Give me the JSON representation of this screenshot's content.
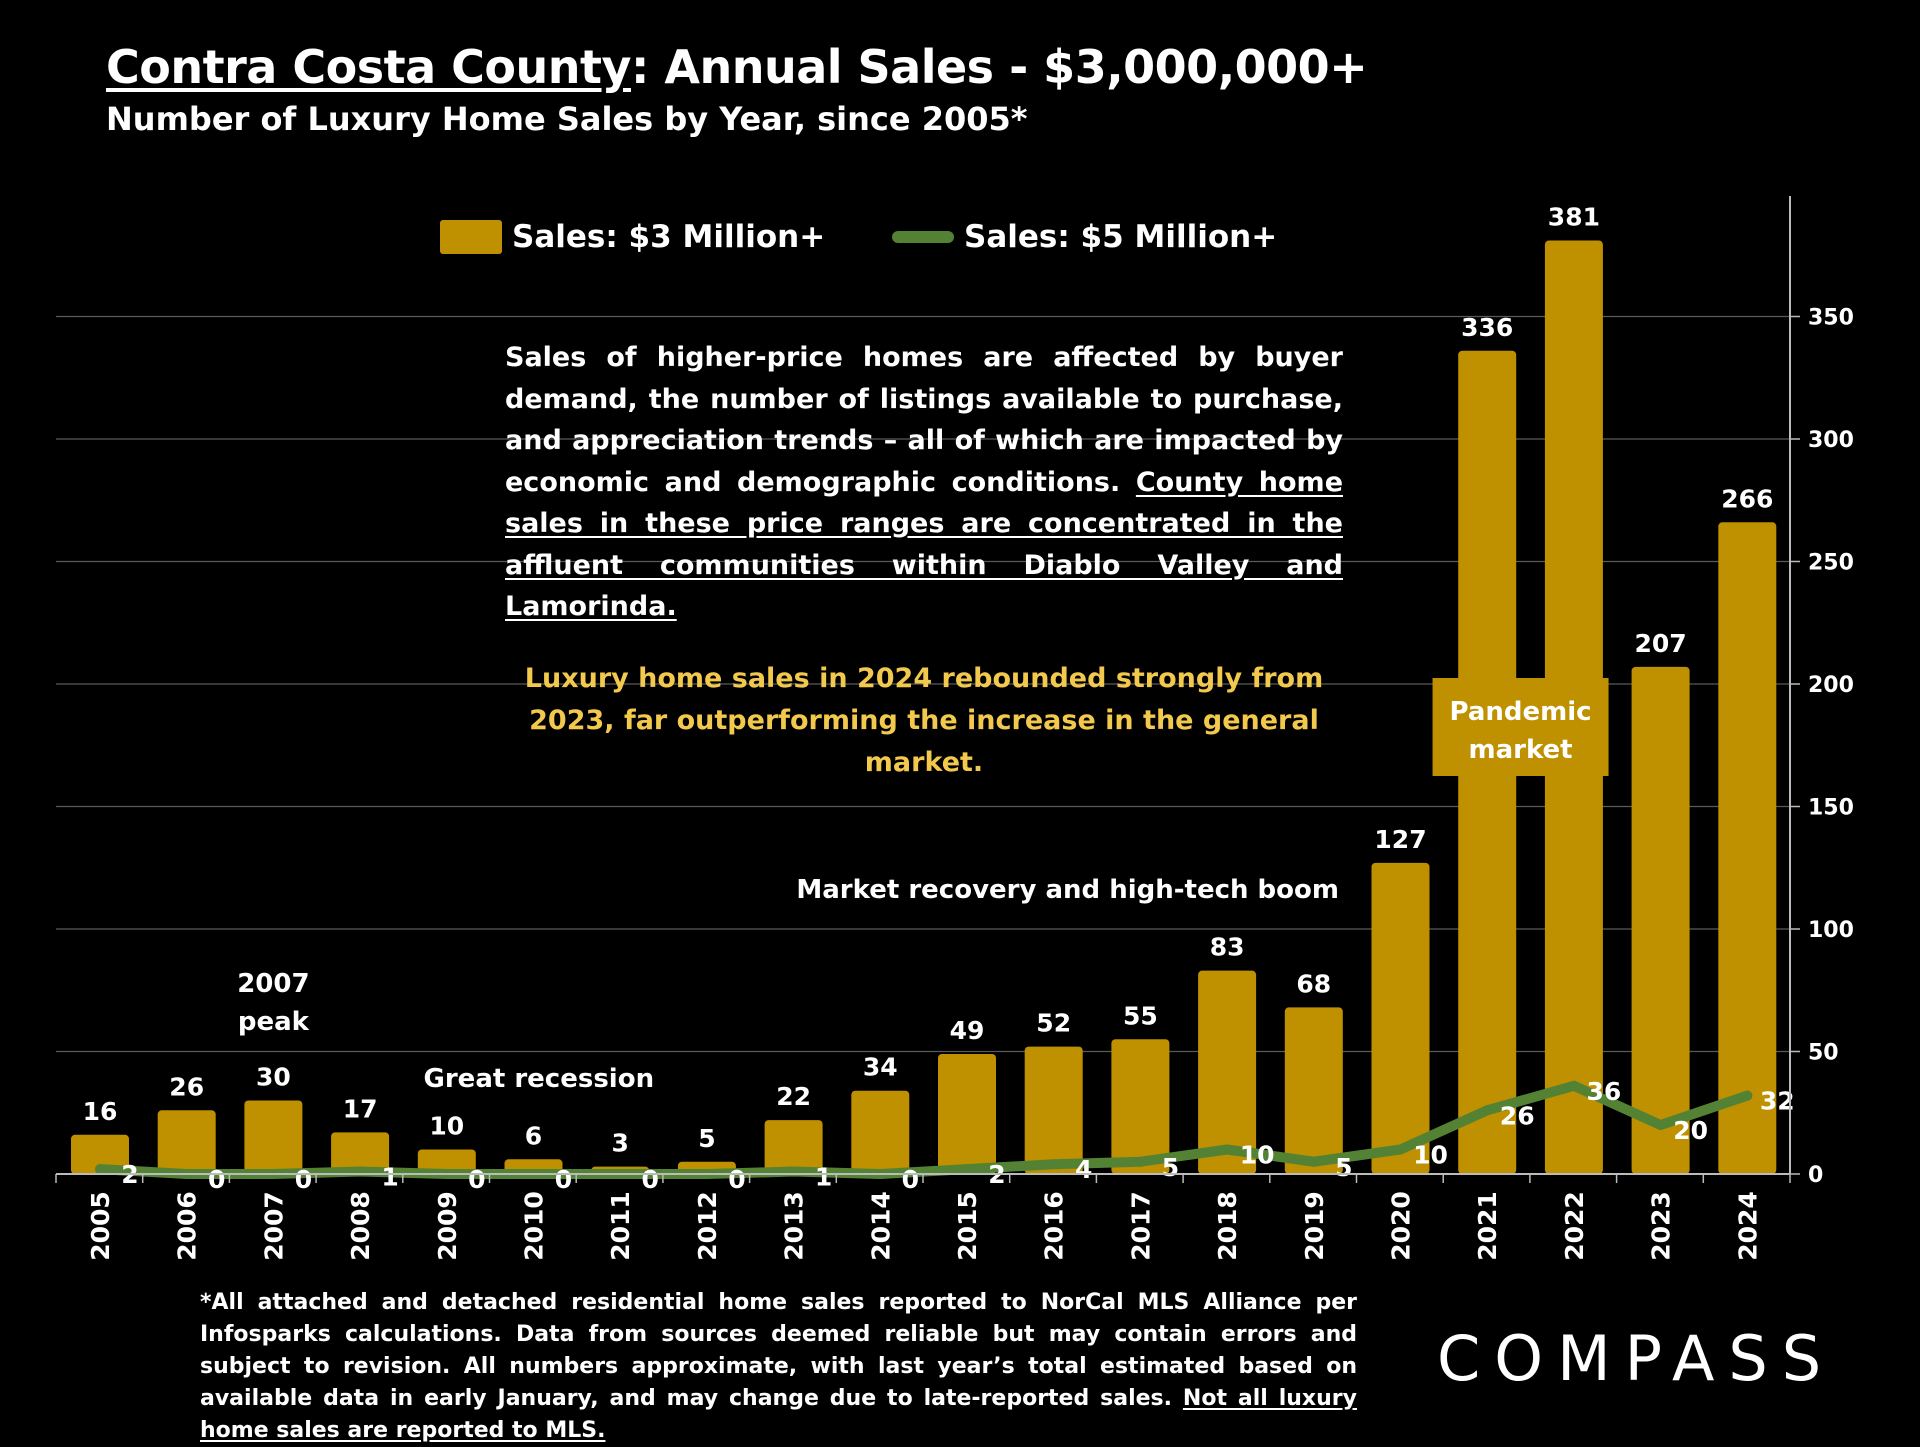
{
  "header": {
    "title_underlined": "Contra Costa County",
    "title_rest": ":  Annual Sales - $3,000,000+",
    "subtitle": "Number of Luxury Home Sales by Year, since 2005*"
  },
  "explanation": {
    "plain": "Sales of higher-price homes are affected by buyer demand, the number of listings available to purchase, and appreciation trends – all of which are impacted by economic and demographic conditions. ",
    "underlined": "County home sales in these price ranges are concentrated in the affluent communities within Diablo Valley and Lamorinda."
  },
  "highlight_text": "Luxury home sales in 2024 rebounded strongly from 2023, far outperforming the increase in the general market.",
  "footnote": {
    "plain": "*All attached and detached residential home sales reported to NorCal MLS Alliance per Infosparks calculations. Data from sources deemed reliable but may contain errors and subject to revision. All numbers approximate, with last year’s total estimated based on available data in early January, and may change due to late-reported sales. ",
    "underlined": "Not all luxury home sales are reported to MLS."
  },
  "logo_text": "COMPASS",
  "chart_data": {
    "type": "bar",
    "categories": [
      "2005",
      "2006",
      "2007",
      "2008",
      "2009",
      "2010",
      "2011",
      "2012",
      "2013",
      "2014",
      "2015",
      "2016",
      "2017",
      "2018",
      "2019",
      "2020",
      "2021",
      "2022",
      "2023",
      "2024"
    ],
    "series": [
      {
        "name": "Sales: $3 Million+",
        "type": "bar",
        "color": "#bf9000",
        "values": [
          16,
          26,
          30,
          17,
          10,
          6,
          3,
          5,
          22,
          34,
          49,
          52,
          55,
          83,
          68,
          127,
          336,
          381,
          207,
          266
        ]
      },
      {
        "name": "Sales:  $5 Million+",
        "type": "line",
        "color": "#548235",
        "values": [
          2,
          0,
          0,
          1,
          0,
          0,
          0,
          0,
          1,
          0,
          2,
          4,
          5,
          10,
          5,
          10,
          26,
          36,
          20,
          32
        ]
      }
    ],
    "y_axis": {
      "position": "right",
      "min": 0,
      "max": 400,
      "ticks": [
        0,
        50,
        100,
        150,
        200,
        250,
        300,
        350
      ],
      "tick_labels": [
        "0",
        "50",
        "100",
        "150",
        "200",
        "250",
        "300",
        "350"
      ]
    },
    "grid": true,
    "legend_position": "top",
    "annotations": [
      {
        "text_lines": [
          "2007",
          "peak"
        ],
        "category": "2007"
      },
      {
        "text_lines": [
          "Great recession"
        ],
        "category": "2009"
      },
      {
        "text_lines": [
          "Market recovery and high-tech boom"
        ],
        "category": "2016"
      },
      {
        "text_lines": [
          "Pandemic",
          "market"
        ],
        "category": "2021"
      }
    ]
  }
}
